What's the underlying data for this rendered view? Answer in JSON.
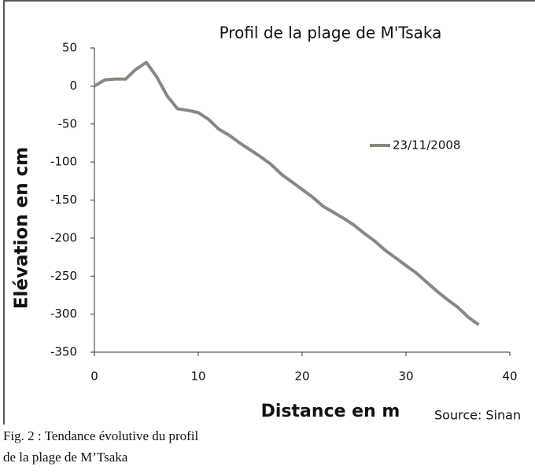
{
  "chart_data": {
    "type": "line",
    "title": "Profil de la plage de M'Tsaka",
    "x_label": "Distance en m",
    "y_label": "Elévation en cm",
    "source": "Source: Sinan",
    "x": [
      0,
      1,
      2,
      3,
      4,
      5,
      6,
      7,
      8,
      9,
      10,
      11,
      12,
      13,
      14,
      15,
      16,
      17,
      18,
      19,
      20,
      21,
      22,
      23,
      24,
      25,
      26,
      27,
      28,
      29,
      30,
      31,
      32,
      33,
      34,
      35,
      36,
      37
    ],
    "series": [
      {
        "name": "23/11/2008",
        "color": "#8c8681",
        "values": [
          0,
          8,
          9,
          9,
          22,
          31,
          12,
          -13,
          -30,
          -32,
          -35,
          -44,
          -57,
          -65,
          -75,
          -84,
          -93,
          -103,
          -116,
          -126,
          -136,
          -146,
          -158,
          -166,
          -174,
          -183,
          -194,
          -204,
          -216,
          -226,
          -236,
          -246,
          -258,
          -270,
          -281,
          -291,
          -304,
          -314
        ]
      }
    ],
    "xlim": [
      0,
      40
    ],
    "xticks": [
      0,
      10,
      20,
      30,
      40
    ],
    "ylim": [
      -350,
      50
    ],
    "yticks": [
      -350,
      -300,
      -250,
      -200,
      -150,
      -100,
      -50,
      0,
      50
    ],
    "legend": "right"
  },
  "caption": [
    "Fig. 2 : Tendance évolutive du profil",
    "de la plage de M’Tsaka"
  ]
}
